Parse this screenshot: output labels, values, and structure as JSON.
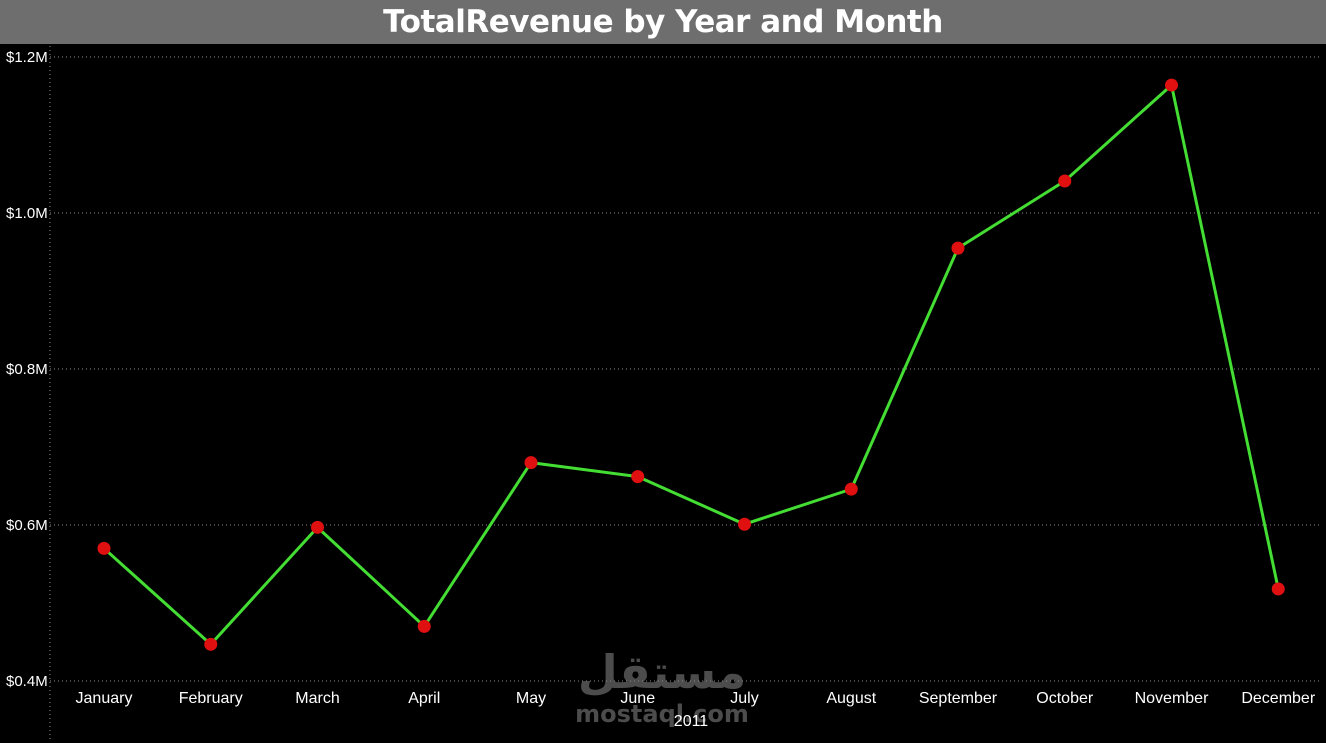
{
  "title": "TotalRevenue by Year and Month",
  "watermark": {
    "arabic": "مستقل",
    "latin": "mostaql.com"
  },
  "colors": {
    "line": "#44dd33",
    "marker": "#e01010",
    "grid": "#8c8c8c",
    "background": "#000000",
    "title_bar": "#6e6e6e"
  },
  "chart_data": {
    "type": "line",
    "title": "TotalRevenue by Year and Month",
    "xlabel": "",
    "ylabel": "",
    "x_group_label": "2011",
    "categories": [
      "January",
      "February",
      "March",
      "April",
      "May",
      "June",
      "July",
      "August",
      "September",
      "October",
      "November",
      "December"
    ],
    "series": [
      {
        "values": [
          0.57,
          0.447,
          0.597,
          0.47,
          0.68,
          0.662,
          0.601,
          0.646,
          0.955,
          1.041,
          1.164,
          0.518
        ]
      }
    ],
    "y_unit": "millions USD",
    "ylim": [
      0.4,
      1.2
    ],
    "yticks": [
      0.4,
      0.6,
      0.8,
      1.0,
      1.2
    ],
    "ytick_labels": [
      "$0.4M",
      "$0.6M",
      "$0.8M",
      "$1.0M",
      "$1.2M"
    ],
    "grid": true,
    "legend": "none"
  }
}
